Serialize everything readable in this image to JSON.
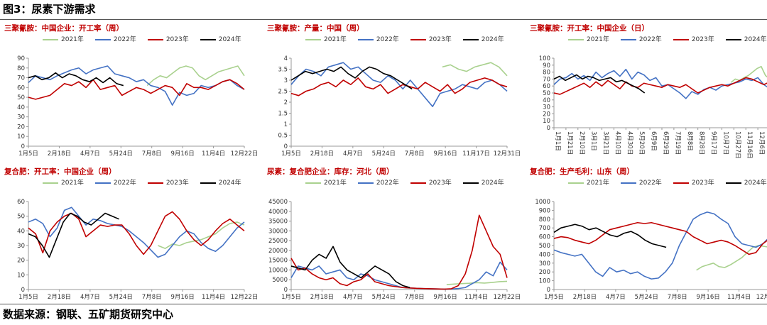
{
  "figure_title": "图3：尿素下游需求",
  "source_text": "数据来源：钢联、五矿期货研究中心",
  "colors": {
    "2021年": "#a9d18e",
    "2022年": "#4472c4",
    "2023年": "#c00000",
    "2024年": "#000000"
  },
  "chart_data": [
    {
      "type": "line",
      "title": "三聚氰胺：中国企业：开工率（周）",
      "legend": [
        "2021年",
        "2022年",
        "2023年",
        "2024年"
      ],
      "x_labels": [
        "1月5日",
        "2月18日",
        "4月7日",
        "5月24日",
        "7月8日",
        "9月16日",
        "11月4日",
        "12月22日"
      ],
      "ylim": [
        0,
        90
      ],
      "yticks": [
        0,
        10,
        20,
        30,
        40,
        50,
        60,
        70,
        80,
        90
      ],
      "series": [
        {
          "name": "2021年",
          "x_start": 0.55,
          "x_end": 1.0,
          "values": [
            62,
            68,
            72,
            70,
            75,
            80,
            82,
            80,
            72,
            68,
            72,
            76,
            78,
            80,
            82,
            72
          ]
        },
        {
          "name": "2022年",
          "x_start": 0.0,
          "x_end": 1.0,
          "values": [
            65,
            72,
            70,
            68,
            72,
            75,
            78,
            80,
            74,
            78,
            80,
            82,
            74,
            72,
            70,
            66,
            68,
            62,
            60,
            56,
            42,
            55,
            52,
            54,
            62,
            60,
            62,
            66,
            68,
            62,
            58
          ]
        },
        {
          "name": "2023年",
          "x_start": 0.0,
          "x_end": 1.0,
          "values": [
            50,
            48,
            50,
            52,
            58,
            64,
            62,
            66,
            60,
            68,
            58,
            60,
            62,
            52,
            56,
            60,
            58,
            54,
            58,
            62,
            60,
            52,
            64,
            60,
            60,
            58,
            62,
            66,
            68,
            64,
            58
          ]
        },
        {
          "name": "2024年",
          "x_start": 0.0,
          "x_end": 0.44,
          "values": [
            70,
            72,
            68,
            70,
            75,
            70,
            74,
            72,
            68,
            66,
            70,
            65,
            70,
            64,
            62
          ]
        }
      ]
    },
    {
      "type": "line",
      "title": "三聚氰胺：产量：中国（周）",
      "legend": [
        "2021年",
        "2022年",
        "2023年",
        "2024年"
      ],
      "x_labels": [
        "1月5日",
        "2月18日",
        "4月7日",
        "5月24日",
        "7月8日",
        "9月16日",
        "11月17日",
        "12月31日"
      ],
      "ylim": [
        0,
        4
      ],
      "yticks": [
        0,
        0.5,
        1,
        1.5,
        2,
        2.5,
        3,
        3.5,
        4
      ],
      "series": [
        {
          "name": "2021年",
          "x_start": 0.7,
          "x_end": 1.0,
          "values": [
            3.6,
            3.7,
            3.5,
            3.4,
            3.6,
            3.7,
            3.8,
            3.6,
            3.2
          ]
        },
        {
          "name": "2022年",
          "x_start": 0.0,
          "x_end": 1.0,
          "values": [
            2.8,
            3.2,
            3.5,
            3.4,
            3.2,
            3.6,
            3.7,
            3.8,
            3.5,
            3.6,
            3.3,
            3.0,
            2.9,
            3.2,
            3.0,
            2.6,
            3.0,
            2.6,
            2.2,
            1.8,
            2.4,
            2.5,
            2.6,
            2.8,
            2.7,
            2.6,
            2.9,
            3.0,
            2.8,
            2.5
          ]
        },
        {
          "name": "2023年",
          "x_start": 0.0,
          "x_end": 1.0,
          "values": [
            2.4,
            2.3,
            2.5,
            2.6,
            2.8,
            2.9,
            2.7,
            3.0,
            2.8,
            3.1,
            2.7,
            2.6,
            2.8,
            2.4,
            2.6,
            2.8,
            2.7,
            2.6,
            2.9,
            2.7,
            2.5,
            2.8,
            2.4,
            2.6,
            2.9,
            3.0,
            3.1,
            3.0,
            2.8,
            2.7
          ]
        },
        {
          "name": "2024年",
          "x_start": 0.0,
          "x_end": 0.56,
          "values": [
            3.0,
            3.2,
            3.4,
            3.3,
            3.4,
            3.5,
            3.4,
            3.6,
            3.3,
            3.1,
            3.4,
            3.6,
            3.5,
            3.3,
            3.2,
            3.0,
            2.8,
            2.6
          ]
        }
      ]
    },
    {
      "type": "line",
      "title": "三聚氰胺：开工率：中国企业（日）",
      "legend": [
        "2021年",
        "2022年",
        "2023年",
        "2024年"
      ],
      "x_labels": [
        "1月1日",
        "1月21日",
        "2月10日",
        "3月1日",
        "3月21日",
        "4月10日",
        "4月30日",
        "5月20日",
        "6月9日",
        "6月29日",
        "7月19日",
        "8月8日",
        "8月28日",
        "9月17日",
        "10月7日",
        "10月27日",
        "11月16日",
        "12月6日",
        "12月26日"
      ],
      "ylim": [
        0,
        100
      ],
      "yticks": [
        0,
        10,
        20,
        30,
        40,
        50,
        60,
        70,
        80,
        90,
        100
      ],
      "series": [
        {
          "name": "2021年",
          "x_start": 0.82,
          "x_end": 1.0,
          "values": [
            65,
            70,
            68,
            72,
            75,
            80,
            85,
            88,
            75,
            70
          ]
        },
        {
          "name": "2022年",
          "x_start": 0.0,
          "x_end": 1.0,
          "values": [
            62,
            70,
            72,
            78,
            70,
            75,
            68,
            80,
            72,
            78,
            82,
            74,
            84,
            70,
            80,
            76,
            68,
            72,
            60,
            62,
            56,
            50,
            42,
            52,
            48,
            55,
            58,
            54,
            60,
            62,
            64,
            66,
            70,
            68,
            72,
            62,
            56
          ]
        },
        {
          "name": "2023年",
          "x_start": 0.0,
          "x_end": 1.0,
          "values": [
            50,
            48,
            52,
            56,
            60,
            64,
            58,
            66,
            60,
            68,
            62,
            56,
            66,
            60,
            58,
            64,
            62,
            60,
            58,
            62,
            60,
            58,
            62,
            56,
            50,
            54,
            58,
            60,
            62,
            60,
            64,
            68,
            72,
            70,
            66,
            62,
            66
          ]
        },
        {
          "name": "2024年",
          "x_start": 0.0,
          "x_end": 0.42,
          "values": [
            70,
            74,
            68,
            72,
            76,
            70,
            74,
            72,
            68,
            70,
            72,
            66,
            68,
            64,
            60,
            56,
            50
          ]
        }
      ]
    },
    {
      "type": "line",
      "title": "复合肥：开工率：中国企业（周）",
      "legend": [
        "2021年",
        "2022年",
        "2023年",
        "2024年"
      ],
      "x_labels": [
        "1月5日",
        "2月18日",
        "4月7日",
        "5月24日",
        "7月8日",
        "9月16日",
        "11月4日",
        "12月22日"
      ],
      "ylim": [
        0,
        60
      ],
      "yticks": [
        0,
        10,
        20,
        30,
        40,
        50,
        60
      ],
      "series": [
        {
          "name": "2021年",
          "x_start": 0.6,
          "x_end": 1.0,
          "values": [
            30,
            28,
            31,
            30,
            32,
            33,
            34,
            36,
            38,
            42,
            45,
            46,
            44
          ]
        },
        {
          "name": "2022年",
          "x_start": 0.0,
          "x_end": 1.0,
          "values": [
            46,
            48,
            45,
            36,
            42,
            54,
            56,
            50,
            44,
            48,
            47,
            45,
            44,
            43,
            40,
            36,
            32,
            27,
            22,
            24,
            30,
            36,
            40,
            38,
            32,
            28,
            26,
            30,
            36,
            42,
            46
          ]
        },
        {
          "name": "2023年",
          "x_start": 0.0,
          "x_end": 1.0,
          "values": [
            42,
            38,
            25,
            40,
            46,
            50,
            52,
            48,
            36,
            40,
            44,
            43,
            44,
            44,
            38,
            30,
            24,
            30,
            40,
            50,
            53,
            48,
            40,
            34,
            30,
            34,
            40,
            45,
            48,
            44,
            40
          ]
        },
        {
          "name": "2024年",
          "x_start": 0.0,
          "x_end": 0.42,
          "values": [
            38,
            36,
            30,
            22,
            34,
            46,
            52,
            50,
            46,
            44,
            48,
            52,
            50,
            48
          ]
        }
      ]
    },
    {
      "type": "line",
      "title": "尿素：复合肥企业：库存：河北（周）",
      "legend": [
        "2021年",
        "2022年",
        "2023年",
        "2024年"
      ],
      "x_labels": [
        "1月5日",
        "2月18日",
        "4月7日",
        "5月24日",
        "7月8日",
        "9月16日",
        "11月4日",
        "12月22日"
      ],
      "ylim": [
        0,
        45000
      ],
      "yticks": [
        0,
        5000,
        10000,
        15000,
        20000,
        25000,
        30000,
        35000,
        40000,
        45000
      ],
      "series": [
        {
          "name": "2021年",
          "x_start": 0.72,
          "x_end": 1.0,
          "values": [
            2500,
            2800,
            3000,
            3200,
            3500,
            3300,
            3600,
            4000,
            4200
          ]
        },
        {
          "name": "2022年",
          "x_start": 0.0,
          "x_end": 1.0,
          "values": [
            6000,
            12000,
            11000,
            10000,
            12000,
            8000,
            9000,
            10000,
            6000,
            5000,
            8000,
            7000,
            5000,
            4000,
            3000,
            2000,
            1000,
            800,
            600,
            500,
            400,
            300,
            200,
            300,
            500,
            1000,
            3000,
            5000,
            9000,
            7000,
            14000,
            10000
          ]
        },
        {
          "name": "2023年",
          "x_start": 0.0,
          "x_end": 1.0,
          "values": [
            16000,
            10000,
            11000,
            8000,
            6000,
            5000,
            6000,
            3000,
            2000,
            4000,
            5000,
            8000,
            4000,
            3000,
            2000,
            1500,
            1000,
            800,
            600,
            500,
            400,
            300,
            200,
            400,
            2000,
            8000,
            20000,
            38000,
            30000,
            22000,
            18000,
            6000
          ]
        },
        {
          "name": "2024年",
          "x_start": 0.0,
          "x_end": 0.55,
          "values": [
            12000,
            11000,
            10000,
            15000,
            18000,
            16000,
            22000,
            14000,
            10000,
            8000,
            6000,
            9000,
            12000,
            10000,
            8000,
            4000,
            2000,
            1000
          ]
        }
      ]
    },
    {
      "type": "line",
      "title": "复合肥：生产毛利：山东（周）",
      "legend": [
        "2021年",
        "2022年",
        "2023年",
        "2024年"
      ],
      "x_labels": [
        "1月5日",
        "2月18日",
        "4月7日",
        "5月24日",
        "7月8日",
        "9月16日",
        "11月4日",
        "12月22日"
      ],
      "ylim": [
        0,
        1000
      ],
      "yticks": [
        0,
        100,
        200,
        300,
        400,
        500,
        600,
        700,
        800,
        900,
        1000
      ],
      "series": [
        {
          "name": "2021年",
          "x_start": 0.66,
          "x_end": 1.0,
          "values": [
            220,
            260,
            280,
            300,
            260,
            250,
            280,
            320,
            360,
            420,
            480,
            500,
            490,
            480
          ]
        },
        {
          "name": "2022年",
          "x_start": 0.0,
          "x_end": 1.0,
          "values": [
            450,
            420,
            400,
            380,
            400,
            300,
            200,
            150,
            250,
            200,
            220,
            180,
            200,
            150,
            120,
            130,
            200,
            300,
            500,
            650,
            800,
            850,
            880,
            860,
            800,
            750,
            600,
            520,
            500,
            480,
            520,
            600
          ]
        },
        {
          "name": "2023年",
          "x_start": 0.0,
          "x_end": 1.0,
          "values": [
            580,
            600,
            590,
            560,
            540,
            520,
            560,
            620,
            680,
            700,
            720,
            740,
            760,
            750,
            760,
            740,
            720,
            700,
            680,
            660,
            600,
            560,
            520,
            540,
            560,
            540,
            500,
            450,
            400,
            420,
            520,
            580
          ]
        },
        {
          "name": "2024年",
          "x_start": 0.0,
          "x_end": 0.52,
          "values": [
            650,
            700,
            720,
            740,
            720,
            680,
            700,
            660,
            620,
            600,
            640,
            660,
            620,
            560,
            520,
            500,
            480
          ]
        }
      ]
    }
  ]
}
